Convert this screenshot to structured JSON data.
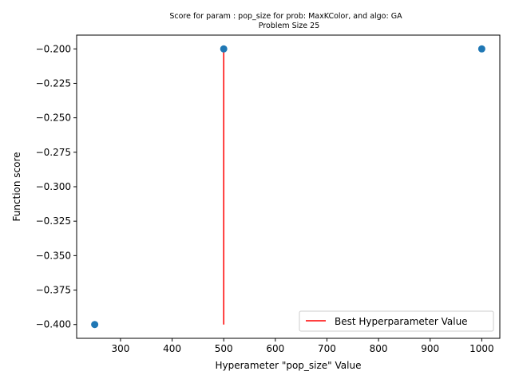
{
  "chart_data": {
    "type": "scatter",
    "title_lines": [
      "Score for param : pop_size for prob: MaxKColor, and algo: GA",
      "Problem Size 25"
    ],
    "xlabel": "Hyperameter \"pop_size\" Value",
    "ylabel": "Function score",
    "xlim": [
      215,
      1035
    ],
    "ylim": [
      -0.41,
      -0.19
    ],
    "xticks": [
      300,
      400,
      500,
      600,
      700,
      800,
      900,
      1000
    ],
    "yticks": [
      -0.2,
      -0.225,
      -0.25,
      -0.275,
      -0.3,
      -0.325,
      -0.35,
      -0.375,
      -0.4
    ],
    "ytick_labels": [
      "−0.200",
      "−0.225",
      "−0.250",
      "−0.275",
      "−0.300",
      "−0.325",
      "−0.350",
      "−0.375",
      "−0.400"
    ],
    "points": [
      {
        "x": 250,
        "y": -0.4
      },
      {
        "x": 500,
        "y": -0.2
      },
      {
        "x": 1000,
        "y": -0.2
      }
    ],
    "point_color": "#1f77b4",
    "best_line": {
      "x": 500,
      "y_from": -0.4,
      "y_to": -0.2,
      "color": "#ff0000"
    },
    "legend": {
      "label": "Best Hyperparameter Value",
      "placement": "lower-right"
    }
  }
}
